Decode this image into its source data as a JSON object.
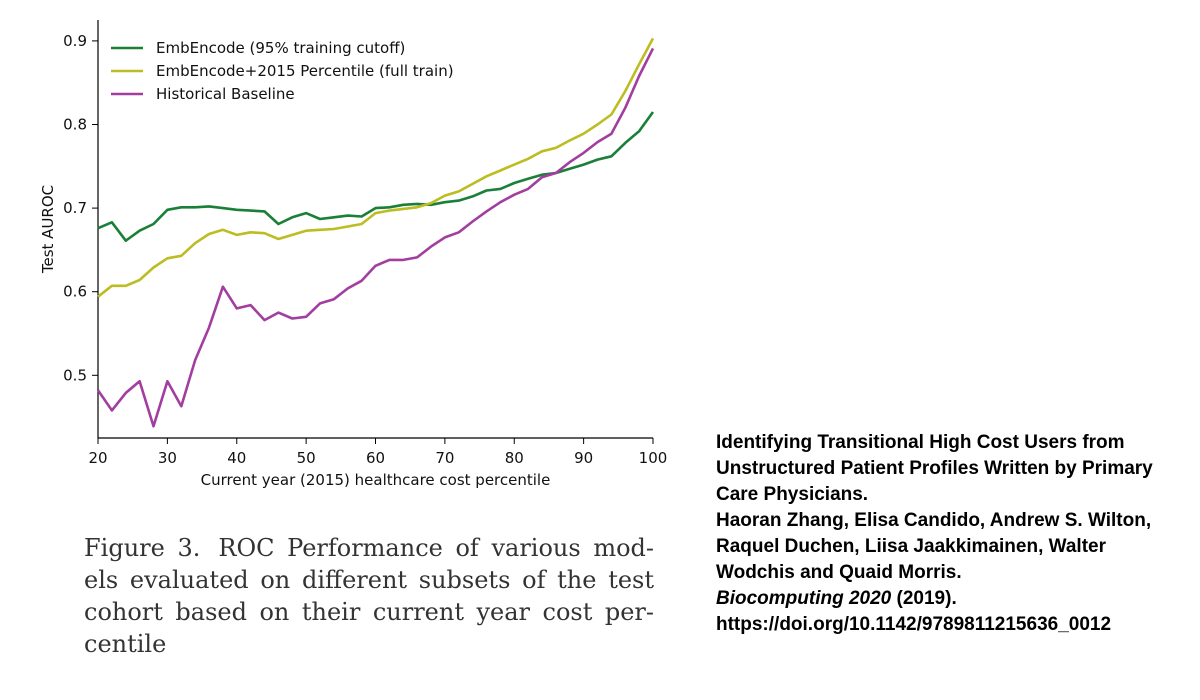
{
  "chart_data": {
    "type": "line",
    "xlabel": "Current year (2015) healthcare cost percentile",
    "ylabel": "Test AUROC",
    "xlim": [
      20,
      100
    ],
    "ylim": [
      0.425,
      0.925
    ],
    "xticks": [
      20,
      30,
      40,
      50,
      60,
      70,
      80,
      90,
      100
    ],
    "yticks": [
      0.5,
      0.6,
      0.7,
      0.8,
      0.9
    ],
    "grid": false,
    "legend_position": "top-left",
    "x": [
      20,
      22,
      24,
      26,
      28,
      30,
      32,
      34,
      36,
      38,
      40,
      42,
      44,
      46,
      48,
      50,
      52,
      54,
      56,
      58,
      60,
      62,
      64,
      66,
      68,
      70,
      72,
      74,
      76,
      78,
      80,
      82,
      84,
      86,
      88,
      90,
      92,
      94,
      96,
      98,
      100
    ],
    "series": [
      {
        "name": "EmbEncode (95% training cutoff)",
        "color": "#1a7f37",
        "values": [
          0.676,
          0.683,
          0.661,
          0.673,
          0.681,
          0.698,
          0.701,
          0.701,
          0.702,
          0.7,
          0.698,
          0.697,
          0.696,
          0.681,
          0.689,
          0.694,
          0.687,
          0.689,
          0.691,
          0.69,
          0.7,
          0.701,
          0.704,
          0.705,
          0.704,
          0.707,
          0.709,
          0.714,
          0.721,
          0.723,
          0.73,
          0.735,
          0.74,
          0.742,
          0.747,
          0.752,
          0.758,
          0.762,
          0.778,
          0.792,
          0.815
        ]
      },
      {
        "name": "EmbEncode+2015 Percentile (full train)",
        "color": "#bcbd22",
        "values": [
          0.594,
          0.607,
          0.607,
          0.614,
          0.629,
          0.64,
          0.643,
          0.658,
          0.669,
          0.674,
          0.668,
          0.671,
          0.67,
          0.663,
          0.668,
          0.673,
          0.674,
          0.675,
          0.678,
          0.681,
          0.694,
          0.697,
          0.699,
          0.701,
          0.706,
          0.715,
          0.72,
          0.729,
          0.738,
          0.745,
          0.752,
          0.759,
          0.768,
          0.772,
          0.781,
          0.789,
          0.8,
          0.812,
          0.84,
          0.872,
          0.903
        ]
      },
      {
        "name": "Historical Baseline",
        "color": "#a23ea0",
        "values": [
          0.482,
          0.458,
          0.479,
          0.493,
          0.439,
          0.493,
          0.463,
          0.518,
          0.557,
          0.606,
          0.58,
          0.584,
          0.566,
          0.575,
          0.568,
          0.57,
          0.586,
          0.591,
          0.604,
          0.613,
          0.631,
          0.638,
          0.638,
          0.641,
          0.654,
          0.665,
          0.671,
          0.684,
          0.696,
          0.707,
          0.716,
          0.723,
          0.737,
          0.742,
          0.755,
          0.766,
          0.779,
          0.789,
          0.82,
          0.858,
          0.891
        ]
      }
    ]
  },
  "caption": {
    "figure_number": "Figure 3.",
    "text": "ROC Performance of various mod­els evaluated on different subsets of the test cohort based on their current year cost per­centile"
  },
  "citation": {
    "title_line_1": "Identifying Transitional High Cost Users from",
    "title_line_2": "Unstructured Patient Profiles Written by Primary",
    "title_line_3": "Care Physicians.",
    "authors_line_1": "Haoran Zhang, Elisa Candido, Andrew S. Wilton,",
    "authors_line_2": "Raquel Duchen, Liisa Jaakkimainen, Walter",
    "authors_line_3": "Wodchis and Quaid Morris.",
    "journal": "Biocomputing 2020",
    "year": "(2019).",
    "doi": "https://doi.org/10.1142/9789811215636_0012"
  }
}
